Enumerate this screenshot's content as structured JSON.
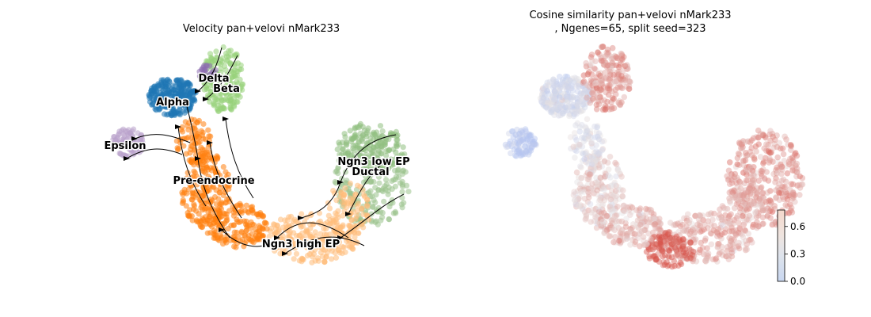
{
  "chart_data": [
    {
      "type": "scatter",
      "title": "Velocity pan+velovi nMark233",
      "xlabel": "",
      "ylabel": "",
      "overlay": "velocity streamlines",
      "axes_visible": false,
      "clusters": [
        {
          "name": "Alpha",
          "color": "#1f77b4"
        },
        {
          "name": "Beta",
          "color": "#98d27a"
        },
        {
          "name": "Delta",
          "color": "#8c6bb1"
        },
        {
          "name": "Epsilon",
          "color": "#b9a3cc"
        },
        {
          "name": "Pre-endocrine",
          "color": "#ff7f0e"
        },
        {
          "name": "Ngn3 high EP",
          "color": "#ffbb78"
        },
        {
          "name": "Ngn3 low EP",
          "color": "#8fbf7f"
        },
        {
          "name": "Ductal",
          "color": "#9bc38d"
        }
      ]
    },
    {
      "type": "scatter",
      "title": "Cosine similarity pan+velovi nMark233",
      "subtitle": ", Ngenes=65, split seed=323",
      "xlabel": "",
      "ylabel": "",
      "axes_visible": false,
      "colormap": "coolwarm",
      "colorbar": {
        "ticks": [
          0.0,
          0.3,
          0.6
        ],
        "range": [
          0.0,
          0.78
        ]
      }
    }
  ]
}
